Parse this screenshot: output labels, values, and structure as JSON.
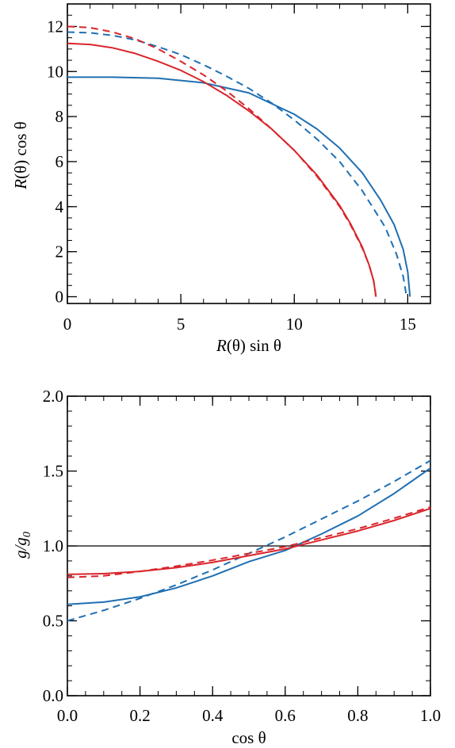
{
  "chart_data": [
    {
      "type": "line",
      "title": "",
      "xlabel": {
        "italic": "R",
        "rest": "(θ) sin θ"
      },
      "ylabel": {
        "italic": "R",
        "rest": "(θ) cos θ"
      },
      "xlim": [
        0,
        16
      ],
      "ylim": [
        -0.3,
        13
      ],
      "xticks": [
        0,
        5,
        10,
        15
      ],
      "yticks": [
        0,
        2,
        4,
        6,
        8,
        10,
        12
      ],
      "xtick_labels": [
        "0",
        "5",
        "10",
        "15"
      ],
      "ytick_labels": [
        "0",
        "2",
        "4",
        "6",
        "8",
        "10",
        "12"
      ],
      "x_minor_step": 1,
      "y_minor_step": 0.5,
      "grid": false,
      "series": [
        {
          "color": "#1f6fb2",
          "dash": "solid",
          "x": [
            0,
            2,
            4,
            6,
            8,
            10,
            11,
            12,
            13,
            13.8,
            14.4,
            14.8,
            15.0,
            15.1
          ],
          "y": [
            9.75,
            9.75,
            9.7,
            9.5,
            9.05,
            8.1,
            7.45,
            6.6,
            5.5,
            4.3,
            3.2,
            2.1,
            1.1,
            0
          ]
        },
        {
          "color": "#1f6fb2",
          "dash": "dashed",
          "x": [
            0,
            1,
            2,
            3,
            4,
            5,
            6,
            7,
            8,
            9,
            10,
            11,
            12,
            13,
            14,
            14.5,
            14.8,
            14.95
          ],
          "y": [
            11.75,
            11.72,
            11.6,
            11.4,
            11.1,
            10.75,
            10.3,
            9.8,
            9.25,
            8.6,
            7.85,
            7.0,
            6.0,
            4.7,
            3.1,
            1.9,
            0.9,
            0
          ]
        },
        {
          "color": "#d9252b",
          "dash": "solid",
          "x": [
            0,
            1,
            2,
            3,
            4,
            5,
            6,
            7,
            8,
            9,
            10,
            11,
            12,
            12.5,
            13,
            13.3,
            13.5,
            13.6
          ],
          "y": [
            11.25,
            11.2,
            11.05,
            10.8,
            10.45,
            10.05,
            9.55,
            8.95,
            8.25,
            7.45,
            6.5,
            5.4,
            4.05,
            3.2,
            2.2,
            1.4,
            0.7,
            0
          ]
        },
        {
          "color": "#d9252b",
          "dash": "dashed",
          "x": [
            0,
            1,
            2,
            3,
            4,
            5,
            6,
            7,
            8,
            9,
            10,
            11,
            12,
            12.5,
            13,
            13.3,
            13.5,
            13.6
          ],
          "y": [
            12.0,
            11.95,
            11.75,
            11.45,
            11.0,
            10.45,
            9.85,
            9.15,
            8.35,
            7.45,
            6.5,
            5.35,
            4.0,
            3.15,
            2.15,
            1.4,
            0.7,
            0
          ]
        }
      ]
    },
    {
      "type": "line",
      "title": "",
      "xlabel": {
        "italic": "",
        "rest": "cos θ"
      },
      "ylabel": {
        "italic": "g/g",
        "sub": "0"
      },
      "xlim": [
        0,
        1
      ],
      "ylim": [
        0,
        2
      ],
      "xticks": [
        0,
        0.2,
        0.4,
        0.6,
        0.8,
        1.0
      ],
      "yticks": [
        0,
        0.5,
        1.0,
        1.5,
        2.0
      ],
      "xtick_labels": [
        "0.0",
        "0.2",
        "0.4",
        "0.6",
        "0.8",
        "1.0"
      ],
      "ytick_labels": [
        "0.0",
        "0.5",
        "1.0",
        "1.5",
        "2.0"
      ],
      "x_minor_step": 0.05,
      "y_minor_step": 0.1,
      "grid": false,
      "hline": {
        "y": 1.0,
        "color": "#000000"
      },
      "series": [
        {
          "color": "#1f6fb2",
          "dash": "solid",
          "x": [
            0,
            0.1,
            0.2,
            0.3,
            0.4,
            0.5,
            0.6,
            0.7,
            0.8,
            0.9,
            1.0
          ],
          "y": [
            0.61,
            0.625,
            0.66,
            0.72,
            0.8,
            0.895,
            0.97,
            1.08,
            1.2,
            1.35,
            1.52
          ]
        },
        {
          "color": "#1f6fb2",
          "dash": "dashed",
          "x": [
            0,
            0.1,
            0.2,
            0.3,
            0.4,
            0.5,
            0.6,
            0.7,
            0.8,
            0.9,
            1.0
          ],
          "y": [
            0.5,
            0.57,
            0.65,
            0.74,
            0.84,
            0.95,
            1.06,
            1.18,
            1.3,
            1.43,
            1.57
          ]
        },
        {
          "color": "#d9252b",
          "dash": "solid",
          "x": [
            0,
            0.1,
            0.2,
            0.3,
            0.4,
            0.5,
            0.6,
            0.7,
            0.8,
            0.9,
            1.0
          ],
          "y": [
            0.81,
            0.815,
            0.83,
            0.855,
            0.89,
            0.935,
            0.98,
            1.04,
            1.1,
            1.17,
            1.25
          ]
        },
        {
          "color": "#d9252b",
          "dash": "dashed",
          "x": [
            0,
            0.1,
            0.2,
            0.3,
            0.4,
            0.5,
            0.6,
            0.7,
            0.8,
            0.9,
            1.0
          ],
          "y": [
            0.79,
            0.8,
            0.83,
            0.865,
            0.905,
            0.95,
            0.995,
            1.055,
            1.115,
            1.185,
            1.26
          ]
        }
      ]
    }
  ]
}
